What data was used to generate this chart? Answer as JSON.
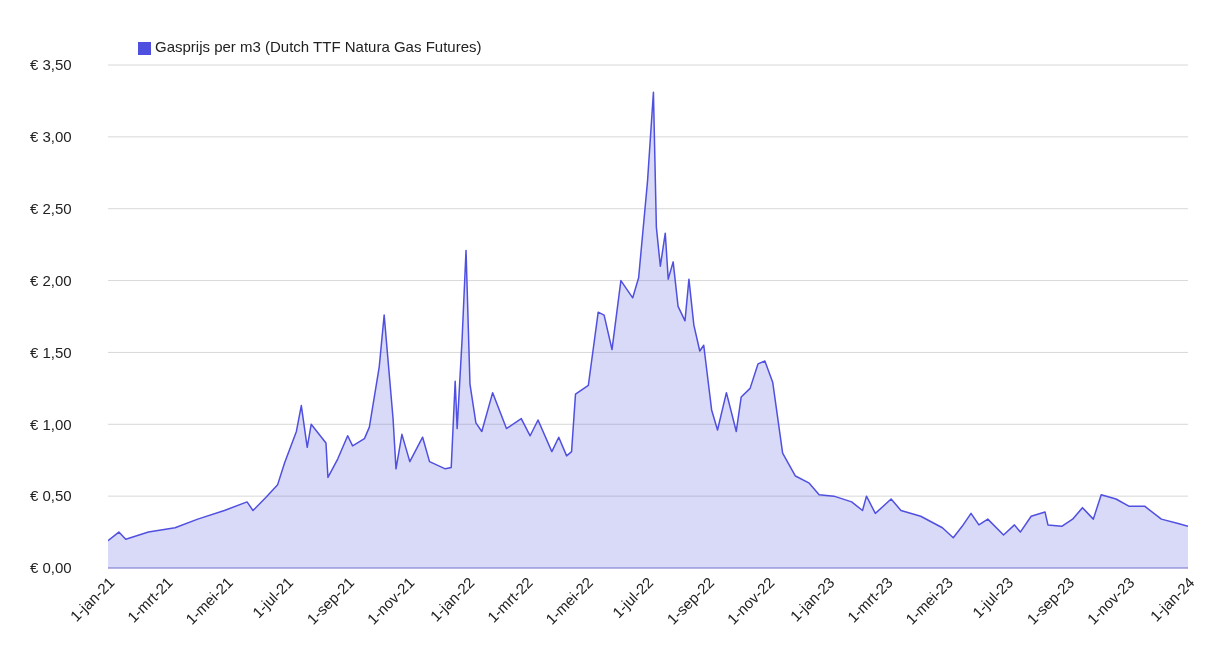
{
  "chart_data": {
    "type": "area",
    "x": [
      "2021-01-01",
      "2021-01-12",
      "2021-01-19",
      "2021-02-11",
      "2021-03-10",
      "2021-04-02",
      "2021-04-29",
      "2021-05-22",
      "2021-05-28",
      "2021-06-10",
      "2021-06-22",
      "2021-06-29",
      "2021-07-11",
      "2021-07-16",
      "2021-07-22",
      "2021-07-26",
      "2021-08-10",
      "2021-08-12",
      "2021-08-22",
      "2021-09-01",
      "2021-09-06",
      "2021-09-18",
      "2021-09-23",
      "2021-10-03",
      "2021-10-08",
      "2021-10-17",
      "2021-10-20",
      "2021-10-26",
      "2021-11-03",
      "2021-11-16",
      "2021-11-23",
      "2021-12-09",
      "2021-12-15",
      "2021-12-19",
      "2021-12-21",
      "2021-12-26",
      "2021-12-30",
      "2022-01-03",
      "2022-01-09",
      "2022-01-15",
      "2022-01-26",
      "2022-02-09",
      "2022-02-24",
      "2022-03-05",
      "2022-03-13",
      "2022-03-27",
      "2022-04-03",
      "2022-04-11",
      "2022-04-16",
      "2022-04-20",
      "2022-05-03",
      "2022-05-13",
      "2022-05-19",
      "2022-05-27",
      "2022-06-05",
      "2022-06-17",
      "2022-06-23",
      "2022-07-02",
      "2022-07-08",
      "2022-07-11",
      "2022-07-15",
      "2022-07-20",
      "2022-07-23",
      "2022-07-28",
      "2022-08-02",
      "2022-08-09",
      "2022-08-13",
      "2022-08-18",
      "2022-08-24",
      "2022-08-28",
      "2022-09-05",
      "2022-09-11",
      "2022-09-20",
      "2022-09-30",
      "2022-10-05",
      "2022-10-14",
      "2022-10-22",
      "2022-10-29",
      "2022-11-06",
      "2022-11-16",
      "2022-11-29",
      "2022-12-13",
      "2022-12-23",
      "2023-01-07",
      "2023-01-25",
      "2023-02-05",
      "2023-02-09",
      "2023-02-18",
      "2023-03-06",
      "2023-03-16",
      "2023-04-05",
      "2023-04-27",
      "2023-05-08",
      "2023-05-17",
      "2023-05-26",
      "2023-06-03",
      "2023-06-12",
      "2023-06-28",
      "2023-07-09",
      "2023-07-15",
      "2023-07-26",
      "2023-08-09",
      "2023-08-12",
      "2023-08-26",
      "2023-09-06",
      "2023-09-16",
      "2023-09-27",
      "2023-10-05",
      "2023-10-20",
      "2023-11-02",
      "2023-11-18",
      "2023-12-05",
      "2023-12-22",
      "2024-01-01"
    ],
    "series": [
      {
        "name": "Gasprijs per m3 (Dutch TTF Natura Gas Futures)",
        "color": "#5050e0",
        "values": [
          0.19,
          0.25,
          0.2,
          0.25,
          0.28,
          0.34,
          0.4,
          0.46,
          0.4,
          0.49,
          0.58,
          0.73,
          0.95,
          1.13,
          0.84,
          1.0,
          0.87,
          0.63,
          0.76,
          0.92,
          0.85,
          0.9,
          0.98,
          1.4,
          1.76,
          1.04,
          0.69,
          0.93,
          0.74,
          0.91,
          0.74,
          0.69,
          0.7,
          1.3,
          0.97,
          1.59,
          2.21,
          1.28,
          1.01,
          0.95,
          1.22,
          0.97,
          1.04,
          0.92,
          1.03,
          0.81,
          0.91,
          0.78,
          0.81,
          1.21,
          1.27,
          1.78,
          1.76,
          1.52,
          2.0,
          1.88,
          2.02,
          2.69,
          3.31,
          2.37,
          2.1,
          2.33,
          2.01,
          2.13,
          1.82,
          1.72,
          2.01,
          1.69,
          1.51,
          1.55,
          1.1,
          0.96,
          1.22,
          0.95,
          1.19,
          1.25,
          1.42,
          1.44,
          1.29,
          0.8,
          0.64,
          0.59,
          0.51,
          0.5,
          0.46,
          0.4,
          0.5,
          0.38,
          0.48,
          0.4,
          0.36,
          0.28,
          0.21,
          0.29,
          0.38,
          0.3,
          0.34,
          0.23,
          0.3,
          0.25,
          0.36,
          0.39,
          0.3,
          0.29,
          0.34,
          0.42,
          0.34,
          0.51,
          0.48,
          0.43,
          0.43,
          0.34,
          0.31,
          0.29
        ]
      }
    ],
    "xlim": [
      "2021-01-01",
      "2024-01-01"
    ],
    "xticks": [
      {
        "value": "2021-01-01",
        "label": "1-jan-21"
      },
      {
        "value": "2021-03-01",
        "label": "1-mrt-21"
      },
      {
        "value": "2021-05-01",
        "label": "1-mei-21"
      },
      {
        "value": "2021-07-01",
        "label": "1-jul-21"
      },
      {
        "value": "2021-09-01",
        "label": "1-sep-21"
      },
      {
        "value": "2021-11-01",
        "label": "1-nov-21"
      },
      {
        "value": "2022-01-01",
        "label": "1-jan-22"
      },
      {
        "value": "2022-03-01",
        "label": "1-mrt-22"
      },
      {
        "value": "2022-05-01",
        "label": "1-mei-22"
      },
      {
        "value": "2022-07-01",
        "label": "1-jul-22"
      },
      {
        "value": "2022-09-01",
        "label": "1-sep-22"
      },
      {
        "value": "2022-11-01",
        "label": "1-nov-22"
      },
      {
        "value": "2023-01-01",
        "label": "1-jan-23"
      },
      {
        "value": "2023-03-01",
        "label": "1-mrt-23"
      },
      {
        "value": "2023-05-01",
        "label": "1-mei-23"
      },
      {
        "value": "2023-07-01",
        "label": "1-jul-23"
      },
      {
        "value": "2023-09-01",
        "label": "1-sep-23"
      },
      {
        "value": "2023-11-01",
        "label": "1-nov-23"
      },
      {
        "value": "2024-01-01",
        "label": "1-jan-24"
      }
    ],
    "ylim": [
      0,
      3.5
    ],
    "yticks": [
      {
        "value": 0,
        "label": "€ 0,00"
      },
      {
        "value": 0.5,
        "label": "€ 0,50"
      },
      {
        "value": 1,
        "label": "€ 1,00"
      },
      {
        "value": 1.5,
        "label": "€ 1,50"
      },
      {
        "value": 2,
        "label": "€ 2,00"
      },
      {
        "value": 2.5,
        "label": "€ 2,50"
      },
      {
        "value": 3,
        "label": "€ 3,00"
      },
      {
        "value": 3.5,
        "label": "€ 3,50"
      }
    ],
    "grid": "y",
    "legend": "top left"
  }
}
